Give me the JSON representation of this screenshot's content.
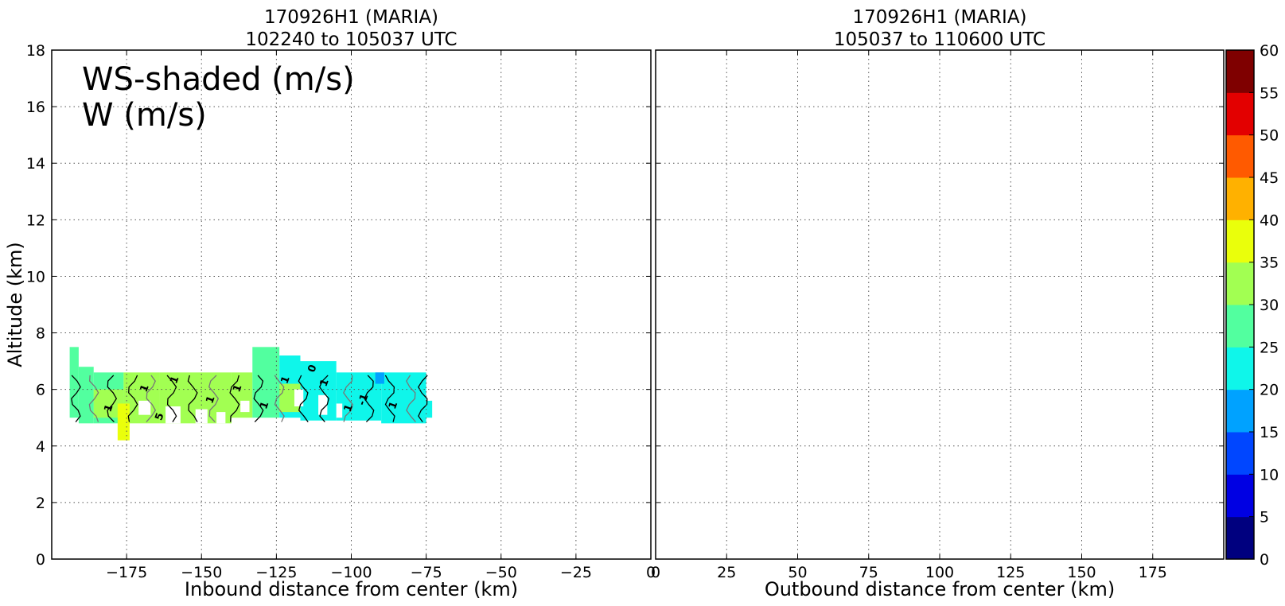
{
  "chart_data": [
    {
      "type": "heatmap",
      "title": [
        "170926H1 (MARIA)",
        "102240 to 105037 UTC"
      ],
      "xlabel": "Inbound distance from center (km)",
      "ylabel": "Altitude (km)",
      "xlim": [
        -200,
        0
      ],
      "ylim": [
        0,
        18
      ],
      "xticks": [
        -175,
        -150,
        -125,
        -100,
        -75,
        -50,
        -25,
        0
      ],
      "xtick_labels": [
        "−175",
        "−150",
        "−125",
        "−100",
        "−75",
        "−50",
        "−25",
        "0"
      ],
      "yticks": [
        0,
        2,
        4,
        6,
        8,
        10,
        12,
        14,
        16,
        18
      ],
      "ytick_labels": [
        "0",
        "2",
        "4",
        "6",
        "8",
        "10",
        "12",
        "14",
        "16",
        "18"
      ],
      "grid": true,
      "annotation": [
        "WS-shaded (m/s)",
        "W (m/s)"
      ],
      "contour_labels": [
        "1",
        "1",
        "1",
        "1",
        "1",
        "1",
        "1",
        "1",
        "1",
        "1",
        "-1",
        "0",
        "5"
      ],
      "shaded_regions": [
        {
          "x": [
            -194,
            -191
          ],
          "y": [
            5.0,
            7.5
          ],
          "value": 27
        },
        {
          "x": [
            -191,
            -186
          ],
          "y": [
            4.8,
            6.8
          ],
          "value": 27
        },
        {
          "x": [
            -186,
            -176
          ],
          "y": [
            4.8,
            6.6
          ],
          "value": 28
        },
        {
          "x": [
            -176,
            -164
          ],
          "y": [
            4.8,
            6.6
          ],
          "value": 32
        },
        {
          "x": [
            -164,
            -140
          ],
          "y": [
            4.8,
            6.6
          ],
          "value": 33
        },
        {
          "x": [
            -140,
            -133
          ],
          "y": [
            5.0,
            6.6
          ],
          "value": 32
        },
        {
          "x": [
            -133,
            -124
          ],
          "y": [
            5.0,
            7.5
          ],
          "value": 27
        },
        {
          "x": [
            -124,
            -117
          ],
          "y": [
            5.0,
            7.2
          ],
          "value": 24
        },
        {
          "x": [
            -117,
            -105
          ],
          "y": [
            4.9,
            7.0
          ],
          "value": 22
        },
        {
          "x": [
            -105,
            -90
          ],
          "y": [
            4.9,
            6.6
          ],
          "value": 22
        },
        {
          "x": [
            -90,
            -75
          ],
          "y": [
            4.8,
            6.6
          ],
          "value": 21
        },
        {
          "x": [
            -75,
            -73
          ],
          "y": [
            5.0,
            5.6
          ],
          "value": 24
        },
        {
          "x": [
            -186,
            -176
          ],
          "y": [
            5.0,
            6.0
          ],
          "value": 30
        },
        {
          "x": [
            -178,
            -174
          ],
          "y": [
            4.2,
            5.5
          ],
          "value": 37
        },
        {
          "x": [
            -147,
            -138
          ],
          "y": [
            5.2,
            6.1
          ],
          "value": 30
        },
        {
          "x": [
            -124,
            -117
          ],
          "y": [
            5.2,
            6.2
          ],
          "value": 30
        },
        {
          "x": [
            -92,
            -89
          ],
          "y": [
            6.2,
            6.6
          ],
          "value": 17
        }
      ],
      "gaps": [
        {
          "x": [
            -171,
            -167
          ],
          "y": [
            5.1,
            5.6
          ]
        },
        {
          "x": [
            -162,
            -157
          ],
          "y": [
            4.8,
            5.4
          ]
        },
        {
          "x": [
            -152,
            -148
          ],
          "y": [
            4.8,
            5.3
          ]
        },
        {
          "x": [
            -145,
            -142
          ],
          "y": [
            4.8,
            5.2
          ]
        },
        {
          "x": [
            -137,
            -134
          ],
          "y": [
            5.2,
            5.6
          ]
        },
        {
          "x": [
            -119,
            -116
          ],
          "y": [
            5.4,
            6.0
          ]
        },
        {
          "x": [
            -111,
            -108
          ],
          "y": [
            5.1,
            5.8
          ]
        },
        {
          "x": [
            -105,
            -103
          ],
          "y": [
            5.0,
            5.5
          ]
        }
      ]
    },
    {
      "type": "heatmap",
      "title": [
        "170926H1 (MARIA)",
        "105037 to 110600 UTC"
      ],
      "xlabel": "Outbound distance from center (km)",
      "ylabel": "",
      "xlim": [
        0,
        200
      ],
      "ylim": [
        0,
        18
      ],
      "xticks": [
        0,
        25,
        50,
        75,
        100,
        125,
        150,
        175
      ],
      "xtick_labels": [
        "0",
        "25",
        "50",
        "75",
        "100",
        "125",
        "150",
        "175"
      ],
      "grid": true,
      "shaded_regions": []
    }
  ],
  "colorbar": {
    "min": 0,
    "max": 60,
    "step": 5,
    "tick_labels": [
      "0",
      "5",
      "10",
      "15",
      "20",
      "25",
      "30",
      "35",
      "40",
      "45",
      "50",
      "55",
      "60"
    ],
    "colors": [
      "#00007f",
      "#0000e3",
      "#0046ff",
      "#00a2ff",
      "#0ff6ea",
      "#52ff9f",
      "#a2ff52",
      "#eaff0b",
      "#ffb100",
      "#ff5a00",
      "#e30000",
      "#7f0000"
    ]
  }
}
